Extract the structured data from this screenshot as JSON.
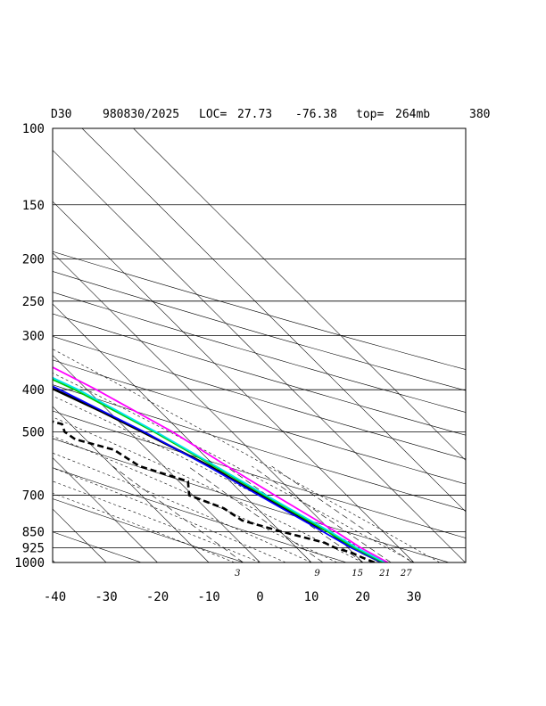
{
  "header": {
    "station": "D30",
    "datetime": "980830/2025",
    "loc_label": "LOC=",
    "lat": "27.73",
    "lon": "-76.38",
    "top_label": "top=",
    "top_value": "264mb",
    "extra": "380"
  },
  "chart_data": {
    "type": "line",
    "subtype": "skew-t log-p sounding",
    "pressure_levels": [
      100,
      150,
      200,
      250,
      300,
      400,
      500,
      700,
      850,
      925,
      1000
    ],
    "pressure_labels": [
      "100",
      "150",
      "200",
      "250",
      "300",
      "400",
      "500",
      "700",
      "850",
      "925",
      "1000"
    ],
    "temperature_ticks": [
      -40,
      -30,
      -20,
      -10,
      0,
      10,
      20,
      30
    ],
    "temperature_labels": [
      "-40",
      "-30",
      "-20",
      "-10",
      "0",
      "10",
      "20",
      "30"
    ],
    "mixing_ratio_labels": [
      "3",
      "9",
      "15",
      "21",
      "27"
    ],
    "grid": true,
    "series": [
      {
        "style": "temperature",
        "color": "#000000",
        "dash": false,
        "points": [
          [
            1000,
            23.7
          ],
          [
            975,
            22.8
          ],
          [
            950,
            21.8
          ],
          [
            925,
            21.3
          ],
          [
            900,
            20.4
          ],
          [
            875,
            19.8
          ],
          [
            850,
            19.4
          ],
          [
            800,
            16.8
          ],
          [
            750,
            15.1
          ],
          [
            700,
            13.2
          ],
          [
            650,
            11.1
          ],
          [
            600,
            9.0
          ],
          [
            550,
            5.9
          ],
          [
            500,
            2.5
          ],
          [
            450,
            -1.4
          ],
          [
            400,
            -6.3
          ],
          [
            350,
            -13.7
          ],
          [
            300,
            -22.5
          ],
          [
            250,
            -33.8
          ],
          [
            200,
            -46.2
          ],
          [
            150,
            -56.0
          ],
          [
            125,
            -59.2
          ],
          [
            100,
            -61.8
          ]
        ]
      },
      {
        "style": "dewpoint",
        "color": "#000000",
        "dash": true,
        "points": [
          [
            1000,
            22.3
          ],
          [
            975,
            20.9
          ],
          [
            950,
            19.8
          ],
          [
            925,
            17.5
          ],
          [
            900,
            16.4
          ],
          [
            850,
            10.3
          ],
          [
            800,
            4.7
          ],
          [
            750,
            3.5
          ],
          [
            700,
            -0.7
          ],
          [
            650,
            1.8
          ],
          [
            600,
            -4.7
          ],
          [
            550,
            -6.5
          ],
          [
            520,
            -12.0
          ],
          [
            500,
            -12.6
          ],
          [
            480,
            -11.6
          ],
          [
            460,
            -15.8
          ],
          [
            450,
            -13.3
          ],
          [
            400,
            -21.5
          ],
          [
            350,
            -29.2
          ],
          [
            310,
            -37.6
          ],
          [
            290,
            -38.0
          ]
        ]
      },
      {
        "style": "parcel",
        "color": "#0000ff",
        "dash": false,
        "points": [
          [
            1000,
            23.7
          ],
          [
            925,
            20.6
          ],
          [
            850,
            18.3
          ],
          [
            700,
            12.9
          ],
          [
            600,
            8.6
          ],
          [
            500,
            2.9
          ],
          [
            400,
            -5.3
          ],
          [
            300,
            -18.3
          ],
          [
            200,
            -41.1
          ],
          [
            150,
            -56.2
          ],
          [
            100,
            -77.1
          ]
        ]
      },
      {
        "style": "parcel",
        "color": "#00cc00",
        "dash": false,
        "points": [
          [
            1000,
            24.0
          ],
          [
            925,
            21.2
          ],
          [
            850,
            19.2
          ],
          [
            700,
            13.9
          ],
          [
            600,
            9.8
          ],
          [
            500,
            4.8
          ],
          [
            400,
            -2.4
          ],
          [
            300,
            -14.9
          ],
          [
            200,
            -36.9
          ],
          [
            150,
            -52.4
          ],
          [
            100,
            -72.4
          ]
        ]
      },
      {
        "style": "parcel",
        "color": "#00e5ee",
        "dash": false,
        "points": [
          [
            1000,
            24.4
          ],
          [
            925,
            21.7
          ],
          [
            850,
            19.7
          ],
          [
            700,
            14.3
          ],
          [
            600,
            10.2
          ],
          [
            500,
            5.2
          ],
          [
            400,
            -1.7
          ],
          [
            300,
            -13.9
          ],
          [
            200,
            -34.1
          ],
          [
            150,
            -48.8
          ],
          [
            100,
            -67.9
          ]
        ]
      },
      {
        "style": "parcel",
        "color": "#ff00ff",
        "dash": false,
        "points": [
          [
            1000,
            24.9
          ],
          [
            925,
            22.5
          ],
          [
            850,
            20.8
          ],
          [
            700,
            16.0
          ],
          [
            600,
            12.4
          ],
          [
            500,
            8.4
          ],
          [
            400,
            1.8
          ],
          [
            300,
            -8.2
          ],
          [
            200,
            -28.1
          ],
          [
            150,
            -42.4
          ],
          [
            100,
            -64.4
          ]
        ]
      }
    ]
  }
}
